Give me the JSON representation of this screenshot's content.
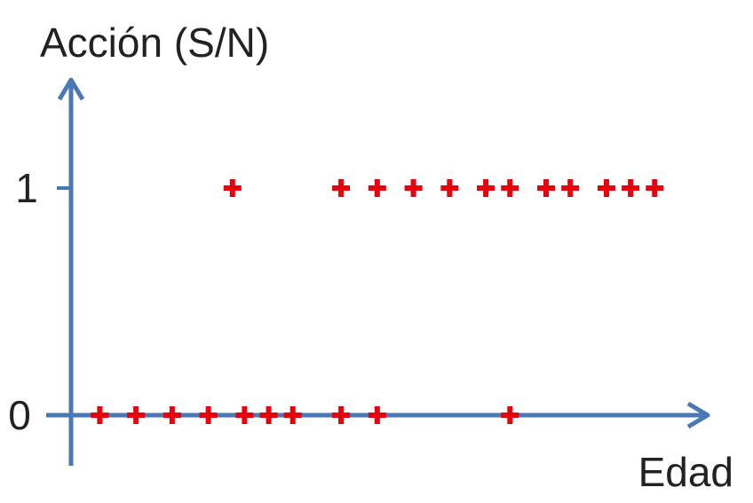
{
  "chart_data": {
    "type": "scatter",
    "title": "",
    "xlabel": "Edad",
    "ylabel": "Acción (S/N)",
    "y_ticks": [
      {
        "value": 0,
        "label": "0"
      },
      {
        "value": 1,
        "label": "1"
      }
    ],
    "x_ticks": [],
    "grid": false,
    "legend": "none",
    "axis_color": "#4a78b5",
    "marker_color": "#e8000b",
    "marker_shape": "plus",
    "ylim": [
      0,
      1.5
    ],
    "xlim": [
      0,
      100
    ],
    "series": [
      {
        "points": [
          {
            "x": 3,
            "y": 0
          },
          {
            "x": 9,
            "y": 0
          },
          {
            "x": 15,
            "y": 0
          },
          {
            "x": 21,
            "y": 0
          },
          {
            "x": 27,
            "y": 0
          },
          {
            "x": 31,
            "y": 0
          },
          {
            "x": 35,
            "y": 0
          },
          {
            "x": 43,
            "y": 0
          },
          {
            "x": 49,
            "y": 0
          },
          {
            "x": 71,
            "y": 0
          },
          {
            "x": 25,
            "y": 1
          },
          {
            "x": 43,
            "y": 1
          },
          {
            "x": 49,
            "y": 1
          },
          {
            "x": 55,
            "y": 1
          },
          {
            "x": 61,
            "y": 1
          },
          {
            "x": 67,
            "y": 1
          },
          {
            "x": 71,
            "y": 1
          },
          {
            "x": 77,
            "y": 1
          },
          {
            "x": 81,
            "y": 1
          },
          {
            "x": 87,
            "y": 1
          },
          {
            "x": 91,
            "y": 1
          },
          {
            "x": 95,
            "y": 1
          }
        ]
      }
    ]
  }
}
